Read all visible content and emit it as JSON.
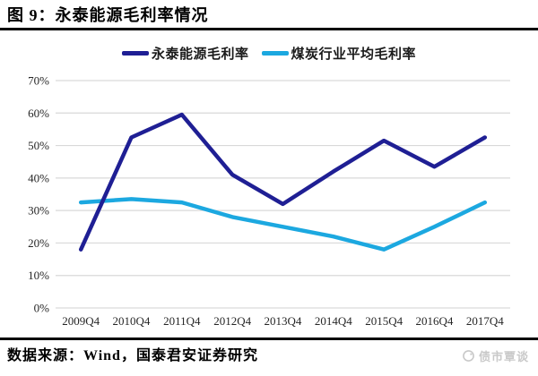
{
  "header": {
    "title": "图 9：永泰能源毛利率情况"
  },
  "legend": [
    {
      "label": "永泰能源毛利率",
      "color": "#1f1f94"
    },
    {
      "label": "煤炭行业平均毛利率",
      "color": "#1ca8e0"
    }
  ],
  "chart_data": {
    "type": "line",
    "title": "",
    "xlabel": "",
    "ylabel": "",
    "categories": [
      "2009Q4",
      "2010Q4",
      "2011Q4",
      "2012Q4",
      "2013Q4",
      "2014Q4",
      "2015Q4",
      "2016Q4",
      "2017Q4"
    ],
    "series": [
      {
        "name": "永泰能源毛利率",
        "color": "#1f1f94",
        "values": [
          18,
          52.5,
          59.5,
          41,
          32,
          42,
          51.5,
          43.5,
          52.5
        ]
      },
      {
        "name": "煤炭行业平均毛利率",
        "color": "#1ca8e0",
        "values": [
          32.5,
          33.5,
          32.5,
          28,
          25,
          22,
          18,
          25,
          32.5
        ]
      }
    ],
    "ylim": [
      0,
      70
    ],
    "ytick_step": 10,
    "ytick_labels": [
      "0%",
      "10%",
      "20%",
      "30%",
      "40%",
      "50%",
      "60%",
      "70%"
    ],
    "grid": true,
    "gridline_color": "#d9d9d9",
    "tick_label_color": "#262626",
    "legend_position": "top"
  },
  "footer": {
    "source": "数据来源：Wind，国泰君安证券研究",
    "watermark": "债市覃谈"
  },
  "colors": {
    "accent_navy": "#1f1f94",
    "accent_cyan": "#1ca8e0",
    "rule_black": "#000000",
    "watermark_gray": "#c9c9c9"
  }
}
